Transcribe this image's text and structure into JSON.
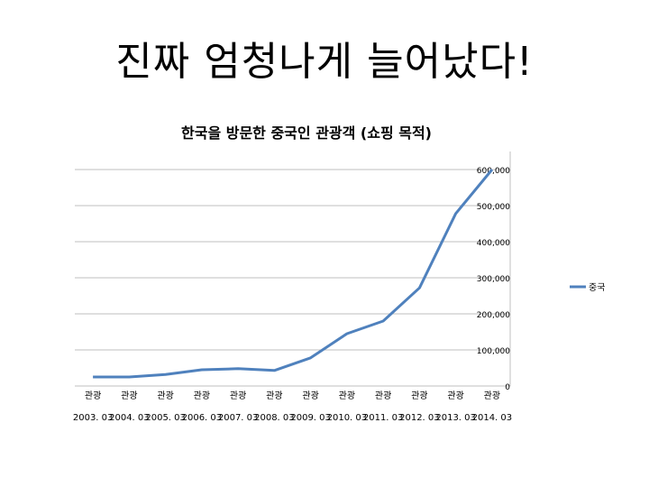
{
  "slide": {
    "title": "진짜 엄청나게 늘어났다!"
  },
  "chart_data": {
    "type": "line",
    "title": "한국을 방문한 중국인 관광객 (쇼핑 목적)",
    "xlabel": "",
    "ylabel": "",
    "categories": [
      "관광|2003. 03",
      "관광|2004. 03",
      "관광|2005. 03",
      "관광|2006. 03",
      "관광|2007. 03",
      "관광|2008. 03",
      "관광|2009. 03",
      "관광|2010. 03",
      "관광|2011. 03",
      "관광|2012. 03",
      "관광|2013. 03",
      "관광|2014. 03"
    ],
    "series": [
      {
        "name": "중국",
        "color": "#4f81bd",
        "values": [
          25000,
          25000,
          32000,
          45000,
          48000,
          43000,
          78000,
          145000,
          180000,
          272000,
          478000,
          600000
        ]
      }
    ],
    "ylim": [
      0,
      600000
    ],
    "yticks": [
      0,
      100000,
      200000,
      300000,
      400000,
      500000,
      600000
    ],
    "ytick_labels": [
      "0",
      "100,000",
      "200,000",
      "300,000",
      "400,000",
      "500,000",
      "600,000"
    ],
    "grid": true,
    "legend": "right"
  }
}
